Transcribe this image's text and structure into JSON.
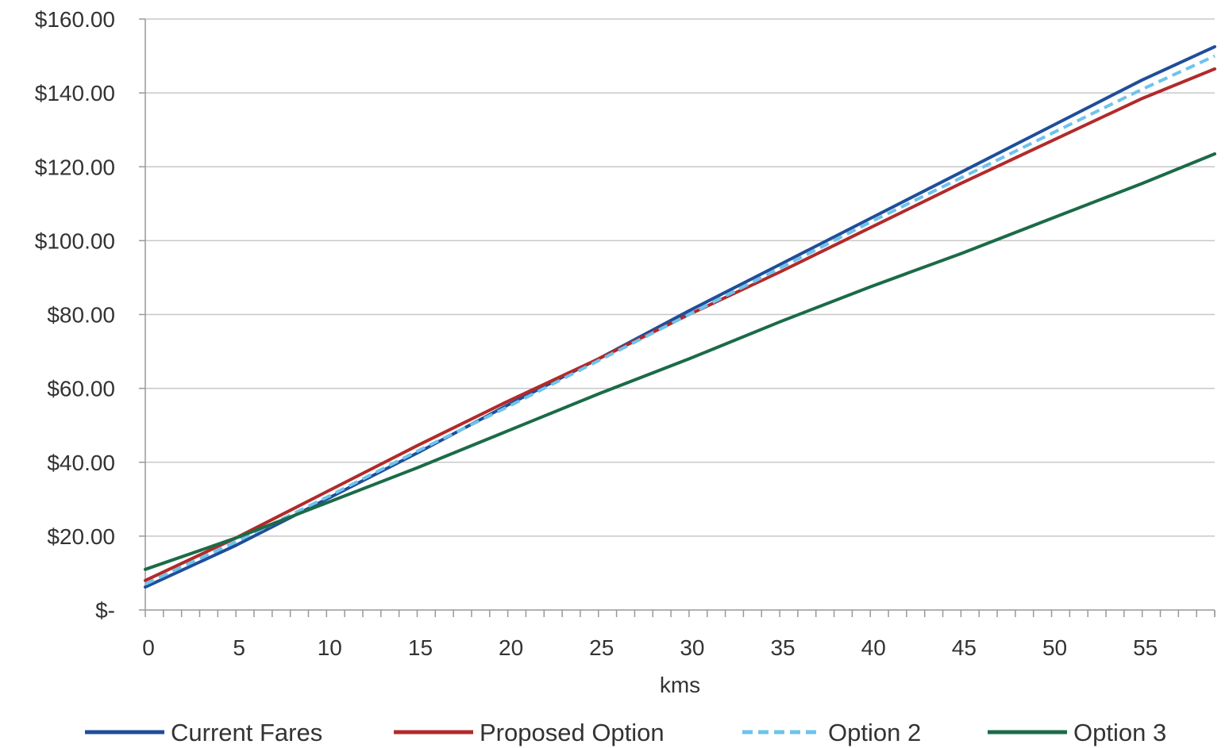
{
  "chart_data": {
    "type": "line",
    "title": "",
    "xlabel": "kms",
    "ylabel": "",
    "xlim": [
      0,
      59
    ],
    "ylim": [
      0,
      160
    ],
    "x_ticks": [
      "0",
      "5",
      "10",
      "15",
      "20",
      "25",
      "30",
      "35",
      "40",
      "45",
      "50",
      "55"
    ],
    "y_ticks": [
      "$-",
      "$20.00",
      "$40.00",
      "$60.00",
      "$80.00",
      "$100.00",
      "$120.00",
      "$140.00",
      "$160.00"
    ],
    "grid": "horizontal",
    "legend_position": "bottom",
    "series": [
      {
        "name": "Current Fares",
        "color": "#1f4e99",
        "dash": "solid",
        "points": [
          [
            0,
            6.2
          ],
          [
            5,
            17.5
          ],
          [
            10,
            30.0
          ],
          [
            15,
            42.5
          ],
          [
            20,
            55.5
          ],
          [
            25,
            68.0
          ],
          [
            30,
            81.0
          ],
          [
            35,
            93.5
          ],
          [
            40,
            106.0
          ],
          [
            45,
            118.5
          ],
          [
            50,
            131.0
          ],
          [
            55,
            143.5
          ],
          [
            59,
            152.5
          ]
        ]
      },
      {
        "name": "Proposed Option",
        "color": "#b22a2a",
        "dash": "solid",
        "points": [
          [
            0,
            8.0
          ],
          [
            5,
            19.5
          ],
          [
            10,
            32.0
          ],
          [
            15,
            44.5
          ],
          [
            20,
            56.5
          ],
          [
            25,
            68.0
          ],
          [
            30,
            80.0
          ],
          [
            35,
            91.5
          ],
          [
            40,
            103.5
          ],
          [
            45,
            115.5
          ],
          [
            50,
            127.0
          ],
          [
            55,
            138.5
          ],
          [
            59,
            146.5
          ]
        ]
      },
      {
        "name": "Option 2",
        "color": "#6ec3ec",
        "dash": "dashed",
        "points": [
          [
            0,
            7.0
          ],
          [
            5,
            18.5
          ],
          [
            10,
            30.5
          ],
          [
            15,
            43.0
          ],
          [
            20,
            55.0
          ],
          [
            25,
            67.5
          ],
          [
            30,
            80.0
          ],
          [
            35,
            92.5
          ],
          [
            40,
            105.0
          ],
          [
            45,
            117.0
          ],
          [
            50,
            129.0
          ],
          [
            55,
            141.0
          ],
          [
            59,
            150.0
          ]
        ]
      },
      {
        "name": "Option 3",
        "color": "#1b6b47",
        "dash": "solid",
        "points": [
          [
            0,
            11.0
          ],
          [
            5,
            19.5
          ],
          [
            10,
            29.0
          ],
          [
            15,
            38.5
          ],
          [
            20,
            48.5
          ],
          [
            25,
            58.5
          ],
          [
            30,
            68.0
          ],
          [
            35,
            78.0
          ],
          [
            40,
            87.5
          ],
          [
            45,
            96.5
          ],
          [
            50,
            106.0
          ],
          [
            55,
            115.5
          ],
          [
            59,
            123.5
          ]
        ]
      }
    ]
  }
}
